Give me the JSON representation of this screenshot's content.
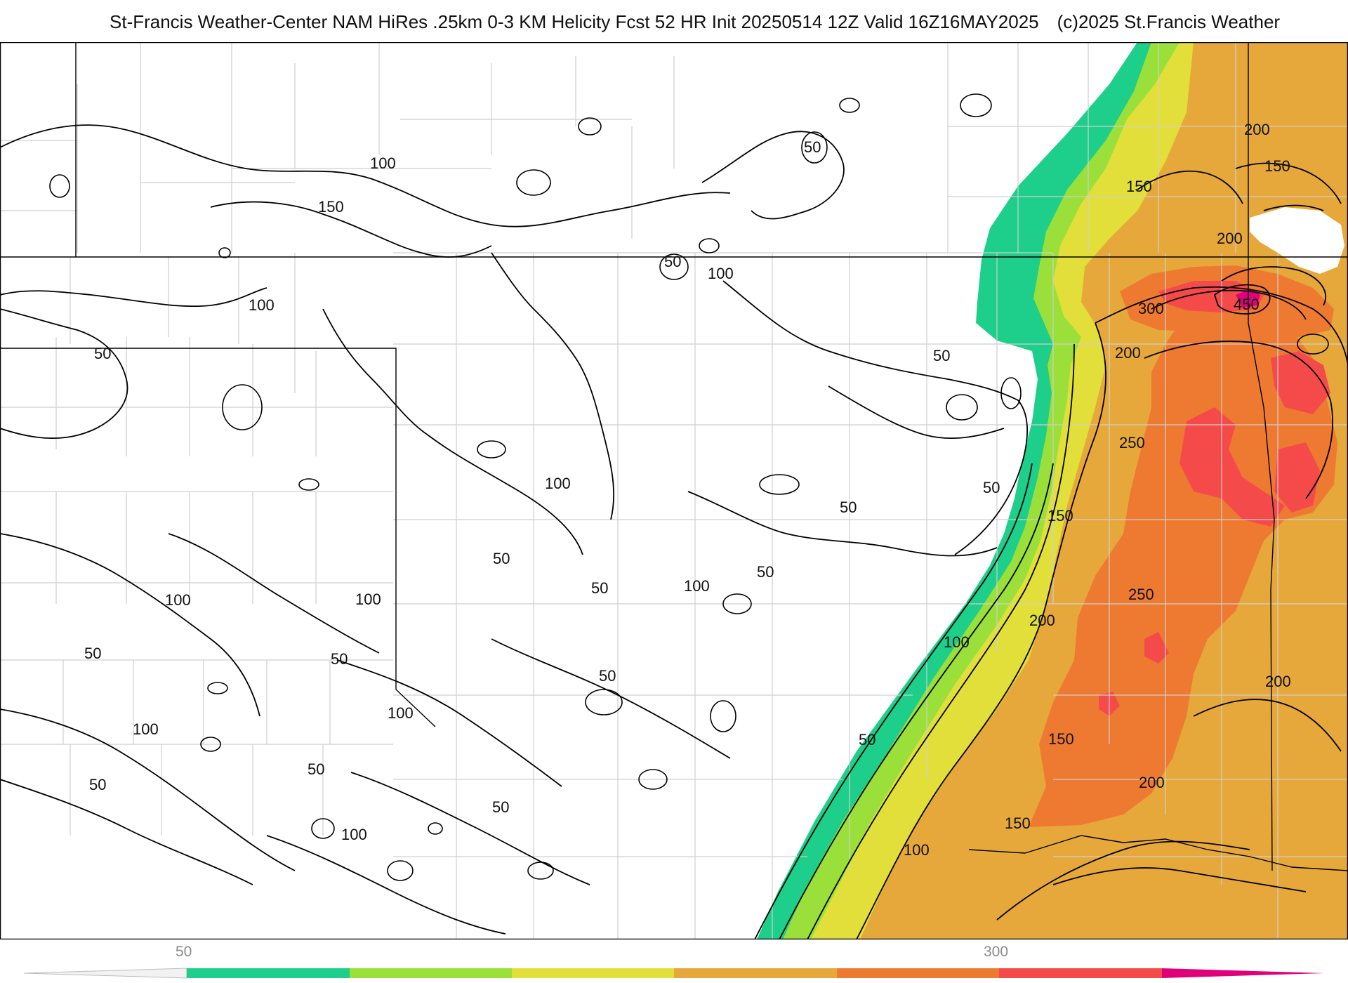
{
  "title": {
    "main": "St-Francis Weather-Center NAM HiRes .25km 0-3 KM Helicity Fcst 52 HR Init 20250514 12Z  Valid 16Z16MAY2025",
    "copyright": "(c)2025 St.Francis Weather"
  },
  "map": {
    "field": "0-3 KM Helicity",
    "contour_interval": 50,
    "contour_color": "#000000",
    "state_border_color": "#000000",
    "county_border_color": "#cfcfcf",
    "contour_labels": [
      {
        "id": "c100-a",
        "text": "100"
      },
      {
        "id": "c150-a",
        "text": "150"
      },
      {
        "id": "c50-a",
        "text": "50"
      },
      {
        "id": "c100-b",
        "text": "100"
      },
      {
        "id": "c50-b",
        "text": "50"
      },
      {
        "id": "c100-c",
        "text": "100"
      },
      {
        "id": "c50-c",
        "text": "50"
      },
      {
        "id": "c150-b",
        "text": "150"
      },
      {
        "id": "c200-a",
        "text": "200"
      },
      {
        "id": "c150-c",
        "text": "150"
      },
      {
        "id": "c200-b",
        "text": "200"
      },
      {
        "id": "c300-a",
        "text": "300"
      },
      {
        "id": "c450-a",
        "text": "450"
      },
      {
        "id": "c50-d",
        "text": "50"
      },
      {
        "id": "c200-c",
        "text": "200"
      },
      {
        "id": "c250-a",
        "text": "250"
      },
      {
        "id": "c100-d",
        "text": "100"
      },
      {
        "id": "c50-e",
        "text": "50"
      },
      {
        "id": "c50-f",
        "text": "50"
      },
      {
        "id": "c150-d",
        "text": "150"
      },
      {
        "id": "c50-g",
        "text": "50"
      },
      {
        "id": "c50-h",
        "text": "50"
      },
      {
        "id": "c50-i",
        "text": "50"
      },
      {
        "id": "c100-e",
        "text": "100"
      },
      {
        "id": "c250-b",
        "text": "250"
      },
      {
        "id": "c100-f",
        "text": "100"
      },
      {
        "id": "c100-g",
        "text": "100"
      },
      {
        "id": "c200-d",
        "text": "200"
      },
      {
        "id": "c50-j",
        "text": "50"
      },
      {
        "id": "c50-k",
        "text": "50"
      },
      {
        "id": "c100-h",
        "text": "100"
      },
      {
        "id": "c50-l",
        "text": "50"
      },
      {
        "id": "c200-e",
        "text": "200"
      },
      {
        "id": "c100-i",
        "text": "100"
      },
      {
        "id": "c100-j",
        "text": "100"
      },
      {
        "id": "c150-e",
        "text": "150"
      },
      {
        "id": "c50-m",
        "text": "50"
      },
      {
        "id": "c50-n",
        "text": "50"
      },
      {
        "id": "c50-o",
        "text": "50"
      },
      {
        "id": "c50-p",
        "text": "50"
      },
      {
        "id": "c200-f",
        "text": "200"
      },
      {
        "id": "c150-f",
        "text": "150"
      },
      {
        "id": "c100-k",
        "text": "100"
      },
      {
        "id": "c100-l",
        "text": "100"
      }
    ]
  },
  "colorbar": {
    "tick_labels": [
      "50",
      "300"
    ],
    "colors": [
      "#f2f2f2",
      "#1dcf8a",
      "#9be03a",
      "#e3df3a",
      "#e6a83a",
      "#ee7a32",
      "#f54a4a",
      "#e0007a"
    ]
  }
}
